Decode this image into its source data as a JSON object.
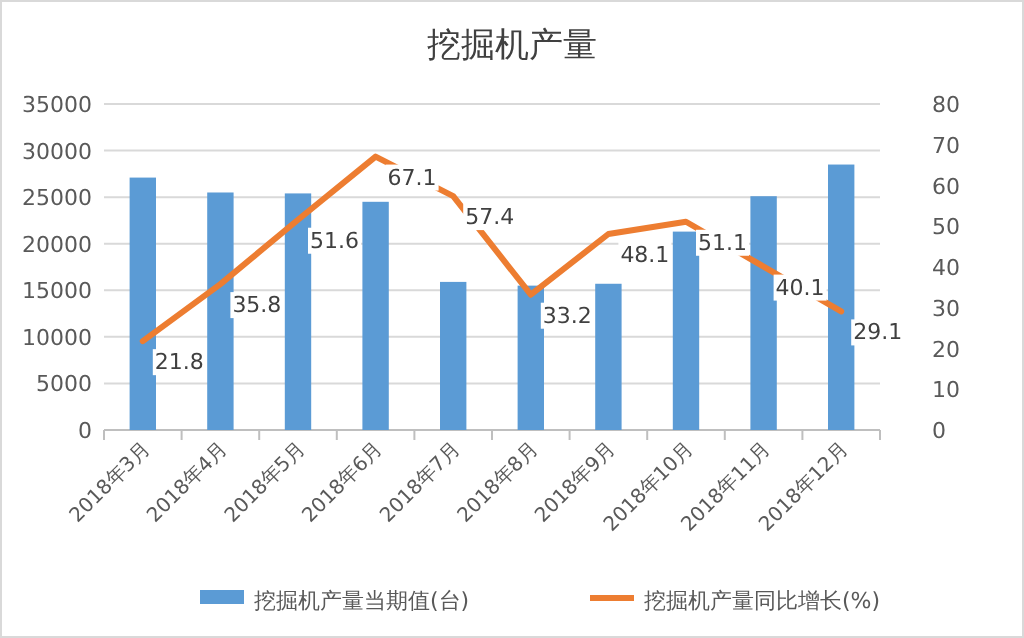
{
  "chart_data": {
    "type": "bar",
    "title": "挖掘机产量",
    "categories": [
      "2018年3月",
      "2018年4月",
      "2018年5月",
      "2018年6月",
      "2018年7月",
      "2018年8月",
      "2018年9月",
      "2018年10月",
      "2018年11月",
      "2018年12月"
    ],
    "series": [
      {
        "name": "挖掘机产量当期值(台)",
        "type": "bar",
        "color": "#5b9bd5",
        "values": [
          27100,
          25500,
          25400,
          24500,
          15900,
          15500,
          15700,
          21300,
          25100,
          28500
        ]
      },
      {
        "name": "挖掘机产量同比增长(%)",
        "type": "line",
        "axis": "y2",
        "color": "#ed7d31",
        "values": [
          21.8,
          35.8,
          51.6,
          67.1,
          57.4,
          33.2,
          48.1,
          51.1,
          40.1,
          29.1
        ],
        "value_labels": [
          "21.8",
          "35.8",
          "51.6",
          "67.1",
          "57.4",
          "33.2",
          "48.1",
          "51.1",
          "40.1",
          "29.1"
        ]
      }
    ],
    "ylim": [
      0,
      35000
    ],
    "yticks": [
      0,
      5000,
      10000,
      15000,
      20000,
      25000,
      30000,
      35000
    ],
    "y2lim": [
      0,
      80
    ],
    "y2ticks": [
      0,
      10,
      20,
      30,
      40,
      50,
      60,
      70,
      80
    ],
    "grid": "y",
    "legend": "bottom",
    "marker": "none",
    "line_style": "solid"
  }
}
